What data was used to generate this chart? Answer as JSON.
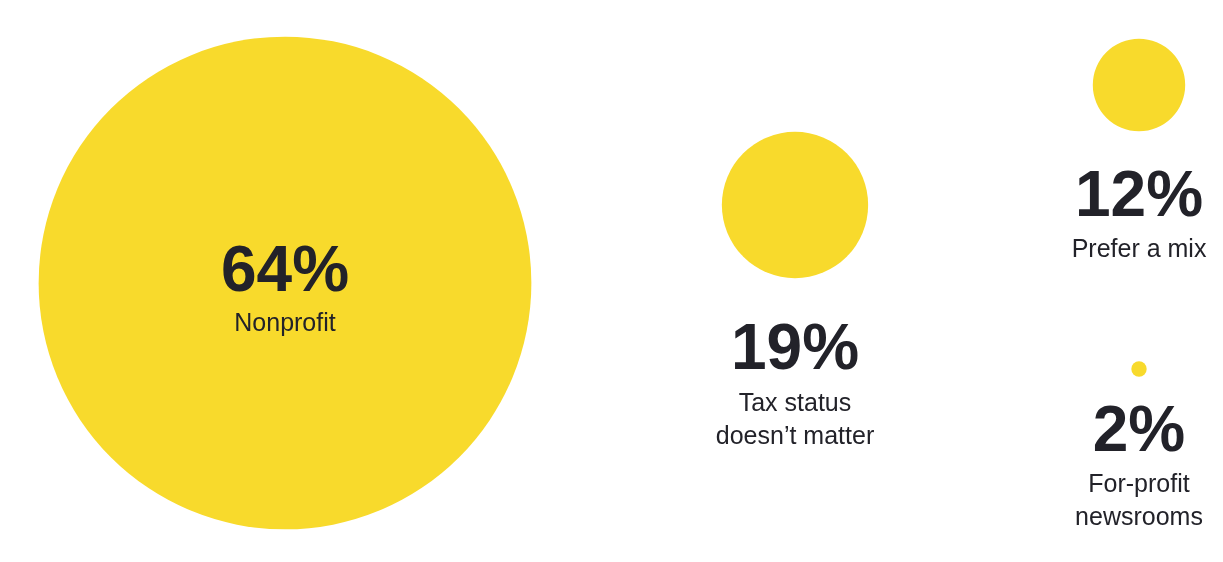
{
  "chart_data": {
    "type": "other",
    "categories": [
      "Nonprofit",
      "Tax status\ndoesn’t matter",
      "Prefer a mix",
      "For-profit\nnewsrooms"
    ],
    "values": [
      64,
      19,
      12,
      2
    ],
    "value_labels": [
      "64%",
      "19%",
      "12%",
      "2%"
    ],
    "color": "#f8da2c"
  }
}
